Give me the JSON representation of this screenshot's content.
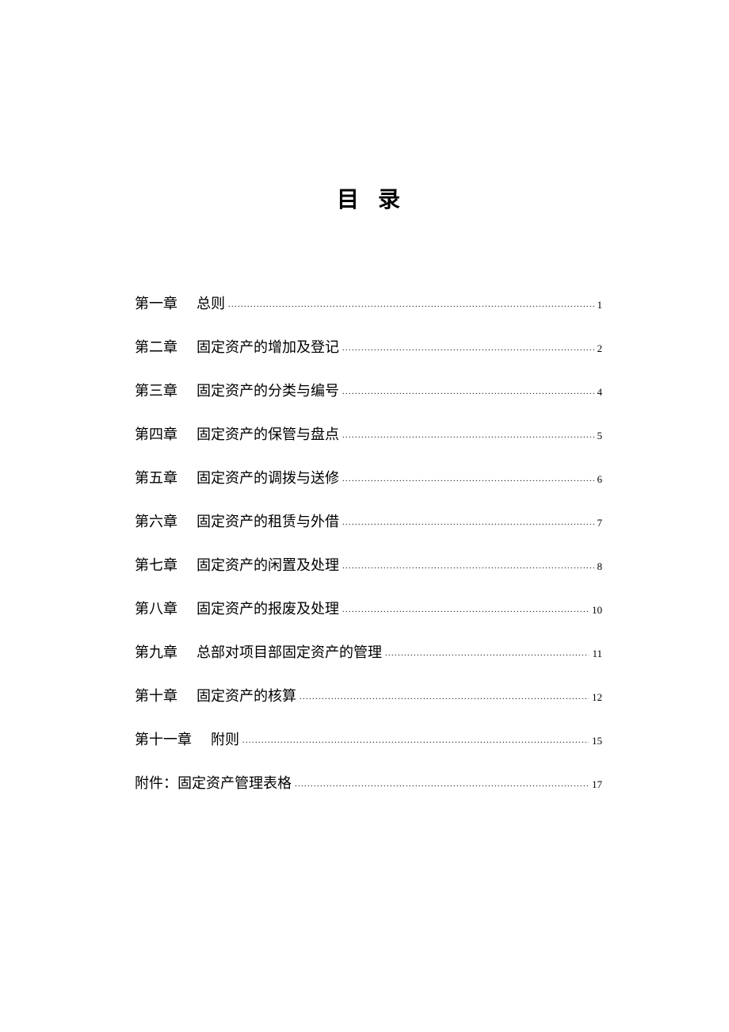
{
  "document": {
    "title": "目录",
    "background_color": "#ffffff",
    "text_color": "#000000",
    "title_fontsize": 28,
    "entry_fontsize": 18,
    "pagenum_fontsize": 13,
    "font_family": "SimSun",
    "toc_entries": [
      {
        "chapter": "第一章",
        "title": "总则",
        "page": "1"
      },
      {
        "chapter": "第二章",
        "title": "固定资产的增加及登记",
        "page": "2"
      },
      {
        "chapter": "第三章",
        "title": "固定资产的分类与编号",
        "page": "4"
      },
      {
        "chapter": "第四章",
        "title": "固定资产的保管与盘点",
        "page": "5"
      },
      {
        "chapter": "第五章",
        "title": "固定资产的调拨与送修",
        "page": "6"
      },
      {
        "chapter": "第六章",
        "title": "固定资产的租赁与外借",
        "page": "7"
      },
      {
        "chapter": "第七章",
        "title": "固定资产的闲置及处理",
        "page": "8"
      },
      {
        "chapter": "第八章",
        "title": "固定资产的报废及处理",
        "page": "10"
      },
      {
        "chapter": "第九章",
        "title": "总部对项目部固定资产的管理",
        "page": "11"
      },
      {
        "chapter": "第十章",
        "title": "固定资产的核算",
        "page": "12"
      },
      {
        "chapter": "第十一章",
        "title": "附则",
        "page": "15"
      },
      {
        "chapter": "附件：",
        "title": "固定资产管理表格",
        "page": "17",
        "no_gap": true
      }
    ]
  }
}
